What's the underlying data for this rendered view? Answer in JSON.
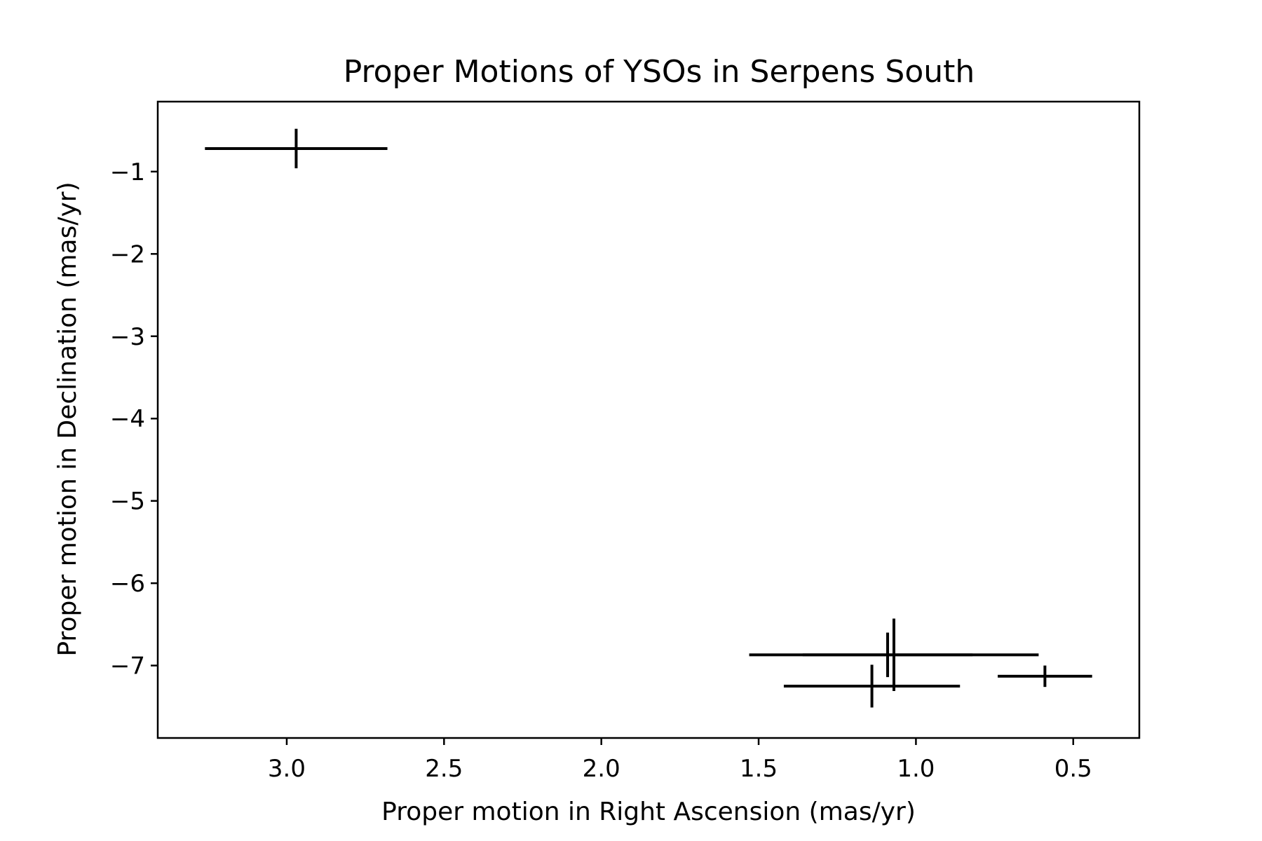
{
  "chart_data": {
    "type": "scatter",
    "title": "Proper Motions of YSOs in Serpens South",
    "xlabel": "Proper motion in Right Ascension (mas/yr)",
    "ylabel": "Proper motion in Declination (mas/yr)",
    "xlim": [
      3.41,
      0.29
    ],
    "ylim": [
      -7.88,
      -0.15
    ],
    "x_inverted": true,
    "grid": false,
    "xticks": [
      3.0,
      2.5,
      2.0,
      1.5,
      1.0,
      0.5
    ],
    "xtick_labels": [
      "3.0",
      "2.5",
      "2.0",
      "1.5",
      "1.0",
      "0.5"
    ],
    "yticks": [
      -1,
      -2,
      -3,
      -4,
      -5,
      -6,
      -7
    ],
    "ytick_labels": [
      "−1",
      "−2",
      "−3",
      "−4",
      "−5",
      "−6",
      "−7"
    ],
    "points": [
      {
        "x": 2.97,
        "y": -0.72,
        "xerr": 0.29,
        "yerr": 0.24
      },
      {
        "x": 1.07,
        "y": -6.87,
        "xerr": 0.46,
        "yerr": 0.44
      },
      {
        "x": 1.09,
        "y": -6.87,
        "xerr": 0.27,
        "yerr": 0.27
      },
      {
        "x": 1.14,
        "y": -7.25,
        "xerr": 0.28,
        "yerr": 0.26
      },
      {
        "x": 0.59,
        "y": -7.13,
        "xerr": 0.15,
        "yerr": 0.13
      }
    ],
    "color": "#000000"
  }
}
